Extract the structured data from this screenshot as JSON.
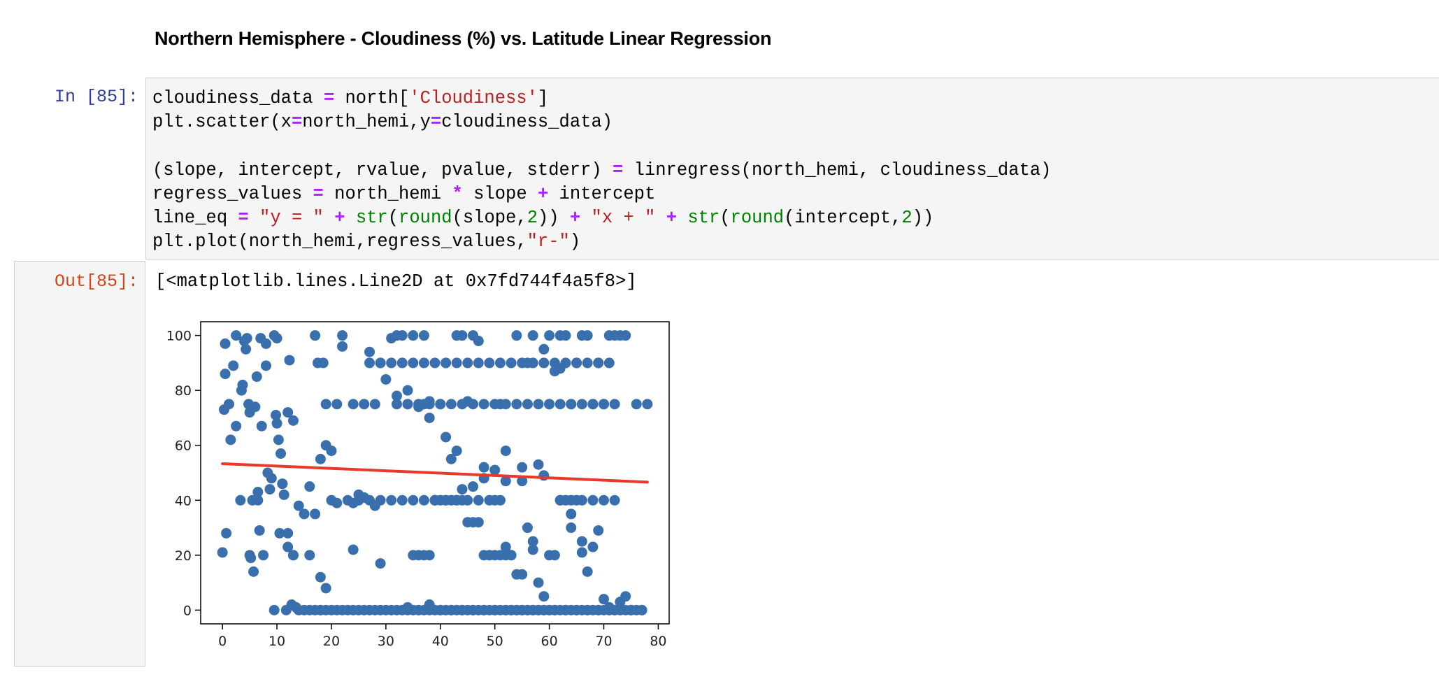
{
  "markdown": {
    "heading": "Northern Hemisphere - Cloudiness (%) vs. Latitude Linear Regression"
  },
  "input_cell": {
    "prompt": "In [85]:"
  },
  "output_cell": {
    "prompt": "Out[85]:",
    "text": "[<matplotlib.lines.Line2D at 0x7fd744f4a5f8>]"
  },
  "colors": {
    "point": "#3a6fad",
    "regression_line": "#e8392b"
  },
  "chart_data": {
    "type": "scatter",
    "xlim": [
      -4,
      82
    ],
    "ylim": [
      -5,
      105
    ],
    "x_ticks": [
      0,
      10,
      20,
      30,
      40,
      50,
      60,
      70,
      80
    ],
    "y_ticks": [
      0,
      20,
      40,
      60,
      80,
      100
    ],
    "grid": false,
    "regression_line": {
      "x": [
        0,
        78
      ],
      "y": [
        53.3,
        46.6
      ]
    },
    "x": [
      0,
      0.3,
      0.5,
      0.7,
      1.2,
      1.5,
      2,
      2.5,
      3.3,
      3.7,
      4,
      4.3,
      4.8,
      5,
      5.2,
      5.5,
      5.7,
      6,
      6.3,
      6.5,
      6.8,
      7.2,
      7.5,
      8,
      8.3,
      8.7,
      9,
      9.5,
      9.8,
      10,
      10.3,
      10.7,
      11,
      11.3,
      11.7,
      12,
      12.3,
      12.7,
      13,
      13.5,
      0.5,
      2.5,
      3.5,
      4.5,
      5,
      6.5,
      7,
      8,
      9.5,
      10,
      10.5,
      11,
      12,
      13,
      14,
      15,
      16,
      17,
      18,
      19,
      20,
      21,
      22,
      23,
      24,
      25,
      26,
      27,
      28,
      29,
      30,
      31,
      32,
      33,
      34,
      35,
      36,
      37,
      38,
      39,
      40,
      41,
      42,
      43,
      44,
      45,
      46,
      47,
      48,
      49,
      50,
      51,
      52,
      53,
      54,
      55,
      56,
      57,
      58,
      59,
      60,
      61,
      62,
      63,
      64,
      65,
      66,
      67,
      68,
      69,
      70,
      71,
      72,
      73,
      74,
      75,
      76,
      77,
      78,
      17,
      19,
      21,
      24,
      26,
      28,
      32,
      34,
      36,
      38,
      40,
      42,
      44,
      46,
      48,
      50,
      52,
      54,
      56,
      58,
      60,
      62,
      64,
      66,
      68,
      70,
      72,
      17.5,
      18.5,
      27,
      29,
      31,
      33,
      35,
      37,
      39,
      41,
      43,
      45,
      47,
      49,
      51,
      53,
      55,
      57,
      59,
      61,
      63,
      65,
      67,
      69,
      71,
      35,
      36,
      37,
      38,
      39,
      40,
      41,
      42,
      43,
      44,
      45,
      46,
      47,
      48,
      49,
      50,
      51,
      52,
      53,
      54,
      55,
      56,
      57,
      58,
      59,
      60,
      61,
      62,
      63,
      64,
      65,
      66,
      67,
      68,
      69,
      70,
      71,
      72,
      73,
      74,
      75,
      34,
      36,
      38,
      40,
      42,
      44,
      46,
      48,
      50,
      52,
      54,
      56,
      58,
      60,
      62,
      64,
      66,
      68,
      70,
      72,
      25,
      27,
      29,
      31,
      33,
      35,
      37,
      39,
      41,
      43,
      45,
      47,
      49,
      51,
      53,
      55,
      57,
      59,
      61,
      63,
      65,
      67,
      69,
      71,
      14,
      15,
      16,
      17,
      18,
      19,
      20,
      21,
      22,
      23,
      24,
      25,
      26,
      27,
      28,
      29,
      30,
      31,
      32,
      33,
      34,
      35,
      36,
      37,
      38,
      39,
      40,
      41,
      42,
      43,
      44,
      45,
      46,
      47,
      48,
      49,
      50,
      51,
      52,
      53,
      54,
      55,
      56,
      57,
      58,
      59,
      60,
      61,
      62,
      63,
      64,
      65,
      66,
      67,
      68,
      69,
      70,
      71,
      72,
      73,
      74,
      75,
      76,
      77,
      20,
      22,
      18,
      19,
      16,
      37,
      43,
      60,
      62,
      25,
      13,
      46,
      34,
      32,
      38,
      41,
      52,
      55,
      59,
      64,
      48,
      44,
      50,
      57,
      66,
      24,
      18,
      12,
      52,
      29
    ],
    "y": [
      21,
      73,
      97,
      28,
      75,
      62,
      89,
      67,
      40,
      82,
      98,
      95,
      75,
      20,
      19,
      40,
      14,
      74,
      85,
      43,
      29,
      67,
      20,
      97,
      50,
      44,
      48,
      0,
      71,
      68,
      62,
      57,
      46,
      42,
      0,
      28,
      91,
      2,
      20,
      1,
      86,
      100,
      80,
      99,
      72,
      40,
      99,
      89,
      100,
      99,
      28,
      46,
      72,
      69,
      38,
      35,
      45,
      35,
      55,
      60,
      40,
      39,
      100,
      40,
      39,
      40,
      41,
      94,
      38,
      90,
      84,
      99,
      100,
      100,
      75,
      100,
      74,
      75,
      76,
      40,
      75,
      90,
      55,
      58,
      100,
      76,
      100,
      98,
      52,
      20,
      51,
      75,
      58,
      20,
      100,
      47,
      90,
      100,
      53,
      95,
      75,
      87,
      100,
      100,
      75,
      90,
      100,
      100,
      75,
      90,
      75,
      100,
      100,
      100,
      100,
      0,
      75,
      0,
      75,
      100,
      75,
      75,
      75,
      75,
      75,
      75,
      75,
      75,
      75,
      75,
      75,
      75,
      75,
      75,
      75,
      75,
      75,
      75,
      75,
      75,
      75,
      75,
      75,
      75,
      75,
      75,
      90,
      90,
      90,
      90,
      90,
      90,
      90,
      90,
      90,
      90,
      90,
      90,
      90,
      90,
      90,
      90,
      90,
      90,
      90,
      90,
      90,
      90,
      90,
      90,
      90,
      20,
      20,
      20,
      20,
      40,
      40,
      40,
      40,
      40,
      40,
      32,
      32,
      32,
      20,
      20,
      20,
      20,
      20,
      20,
      13,
      13,
      30,
      22,
      10,
      5,
      20,
      20,
      40,
      40,
      30,
      40,
      25,
      14,
      23,
      29,
      4,
      1,
      0,
      3,
      5,
      0,
      1,
      0,
      2,
      0,
      0,
      0,
      0,
      0,
      0,
      0,
      0,
      0,
      0,
      0,
      40,
      40,
      40,
      40,
      40,
      40,
      40,
      40,
      40,
      40,
      40,
      40,
      40,
      40,
      40,
      40,
      40,
      40,
      40,
      40,
      0,
      0,
      0,
      0,
      0,
      0,
      0,
      0,
      0,
      0,
      0,
      0,
      0,
      0,
      0,
      0,
      0,
      0,
      0,
      0,
      0,
      0,
      0,
      0,
      0,
      0,
      0,
      0,
      0,
      0,
      0,
      0,
      0,
      0,
      0,
      0,
      0,
      0,
      0,
      0,
      0,
      0,
      0,
      0,
      0,
      0,
      0,
      0,
      0,
      0,
      0,
      0,
      0,
      0,
      0,
      0,
      0,
      0,
      0,
      0,
      0,
      0,
      0,
      0,
      0,
      0,
      0,
      0,
      0,
      0,
      0,
      0,
      0,
      0,
      58,
      96,
      12,
      8,
      20,
      100,
      100,
      100,
      88,
      42,
      20,
      45,
      80,
      78,
      70,
      63,
      47,
      52,
      49,
      35,
      48,
      44,
      40,
      25,
      21,
      22,
      0,
      23,
      23,
      17
    ]
  }
}
